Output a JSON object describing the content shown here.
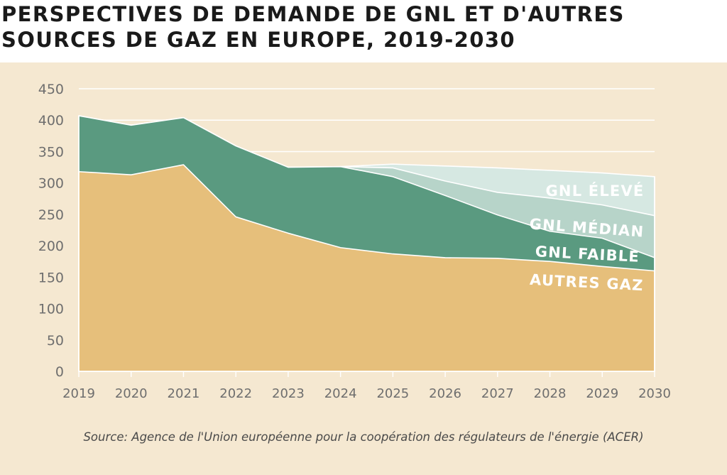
{
  "title": "PERSPECTIVES DE DEMANDE DE GNL ET D'AUTRES SOURCES DE GAZ EN EUROPE, 2019-2030",
  "source": "Source: Agence de l'Union européenne pour la coopération des régulateurs de l'énergie (ACER)",
  "colors": {
    "background": "#f5e8d1",
    "autres_gaz": "#e6bf7b",
    "gnl_faible": "#5a9a80",
    "gnl_median": "#b7d4c9",
    "gnl_eleve": "#d6e8e2",
    "gridline": "#ffffff",
    "axis_text": "#6e6e6e"
  },
  "chart_data": {
    "type": "area",
    "stacked": true,
    "title": "PERSPECTIVES DE DEMANDE DE GNL ET D'AUTRES SOURCES DE GAZ EN EUROPE, 2019-2030",
    "xlabel": "",
    "ylabel": "",
    "ylim": [
      0,
      450
    ],
    "yticks": [
      0,
      50,
      100,
      150,
      200,
      250,
      300,
      350,
      400,
      450
    ],
    "grid": true,
    "legend": "labels inside areas, right side",
    "x": [
      "2019",
      "2020",
      "2021",
      "2022",
      "2023",
      "2024",
      "2025",
      "2026",
      "2027",
      "2028",
      "2029",
      "2030"
    ],
    "series_totals": [
      {
        "name": "GNL ÉLEVÉ",
        "values": [
          407,
          392,
          404,
          359,
          325,
          326,
          330,
          327,
          324,
          320,
          316,
          310
        ]
      },
      {
        "name": "GNL MÉDIAN",
        "values": [
          407,
          392,
          404,
          359,
          325,
          326,
          324,
          303,
          285,
          276,
          265,
          248
        ]
      },
      {
        "name": "GNL FAIBLE",
        "values": [
          407,
          392,
          404,
          359,
          325,
          326,
          310,
          280,
          249,
          223,
          212,
          181
        ]
      },
      {
        "name": "AUTRES GAZ",
        "values": [
          318,
          313,
          329,
          246,
          220,
          197,
          187,
          181,
          180,
          175,
          167,
          160
        ]
      }
    ]
  }
}
